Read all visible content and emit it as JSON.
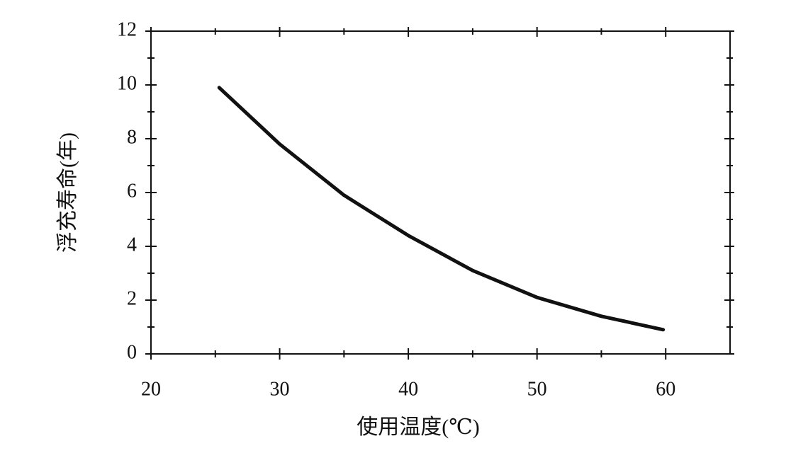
{
  "chart_data": {
    "type": "line",
    "x_label": "使用温度(℃)",
    "y_label": "浮充寿命(年)",
    "xlim": [
      20,
      65
    ],
    "xticks": [
      20,
      30,
      40,
      50,
      60
    ],
    "xminorticks": [
      25,
      35,
      45,
      55
    ],
    "ylim": [
      0,
      12
    ],
    "yticks": [
      0,
      2,
      4,
      6,
      8,
      10,
      12
    ],
    "yminorticks": [
      1,
      3,
      5,
      7,
      9,
      11
    ],
    "grid": false,
    "series": [
      {
        "color": "#111111",
        "x": [
          25.3,
          30,
          35,
          40,
          45,
          50,
          55,
          59.8
        ],
        "values": [
          9.9,
          7.8,
          5.9,
          4.4,
          3.1,
          2.1,
          1.4,
          0.9
        ]
      }
    ]
  }
}
